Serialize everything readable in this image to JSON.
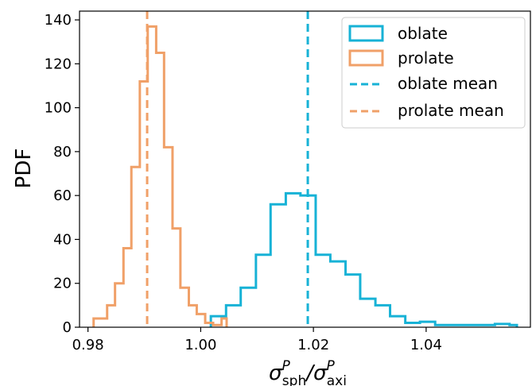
{
  "chart_data": {
    "type": "histogram",
    "xlabel": {
      "main": "σ",
      "sup1": "P",
      "sub1": "sph",
      "slash": "/σ",
      "sup2": "P",
      "sub2": "axi"
    },
    "ylabel": "PDF",
    "xlim": [
      0.9785,
      1.0585
    ],
    "ylim": [
      0,
      144
    ],
    "xticks": [
      0.98,
      1.0,
      1.02,
      1.04
    ],
    "xtick_labels": [
      "0.98",
      "1.00",
      "1.02",
      "1.04"
    ],
    "yticks": [
      0,
      20,
      40,
      60,
      80,
      100,
      120,
      140
    ],
    "ytick_labels": [
      "0",
      "20",
      "40",
      "60",
      "80",
      "100",
      "120",
      "140"
    ],
    "grid": false,
    "legend_position": "top-right",
    "colors": {
      "oblate": "#17b2d6",
      "prolate": "#f0a068"
    },
    "series": [
      {
        "name": "oblate",
        "kind": "step",
        "edges": [
          1.0018,
          1.0045,
          1.0071,
          1.0098,
          1.0124,
          1.0151,
          1.0177,
          1.0204,
          1.023,
          1.0257,
          1.0283,
          1.031,
          1.0336,
          1.0363,
          1.0389,
          1.0416,
          1.0442,
          1.0469,
          1.0495,
          1.0522,
          1.0548,
          1.0561
        ],
        "values": [
          5,
          10,
          18,
          33,
          56,
          61,
          60,
          33,
          30,
          24,
          13,
          10,
          5,
          2,
          2.5,
          1,
          1,
          1,
          1,
          1.5,
          1
        ]
      },
      {
        "name": "prolate",
        "kind": "step",
        "edges": [
          0.981,
          0.9834,
          0.9848,
          0.9863,
          0.9877,
          0.9892,
          0.9906,
          0.9921,
          0.9935,
          0.995,
          0.9964,
          0.9979,
          0.9993,
          1.0008,
          1.0022,
          1.0037,
          1.0046
        ],
        "values": [
          4,
          10,
          20,
          36,
          73,
          112,
          137,
          125,
          82,
          45,
          18,
          10,
          6,
          2,
          1,
          4
        ]
      },
      {
        "name": "oblate mean",
        "kind": "vline",
        "x": 1.019
      },
      {
        "name": "prolate mean",
        "kind": "vline",
        "x": 0.9905
      }
    ]
  }
}
